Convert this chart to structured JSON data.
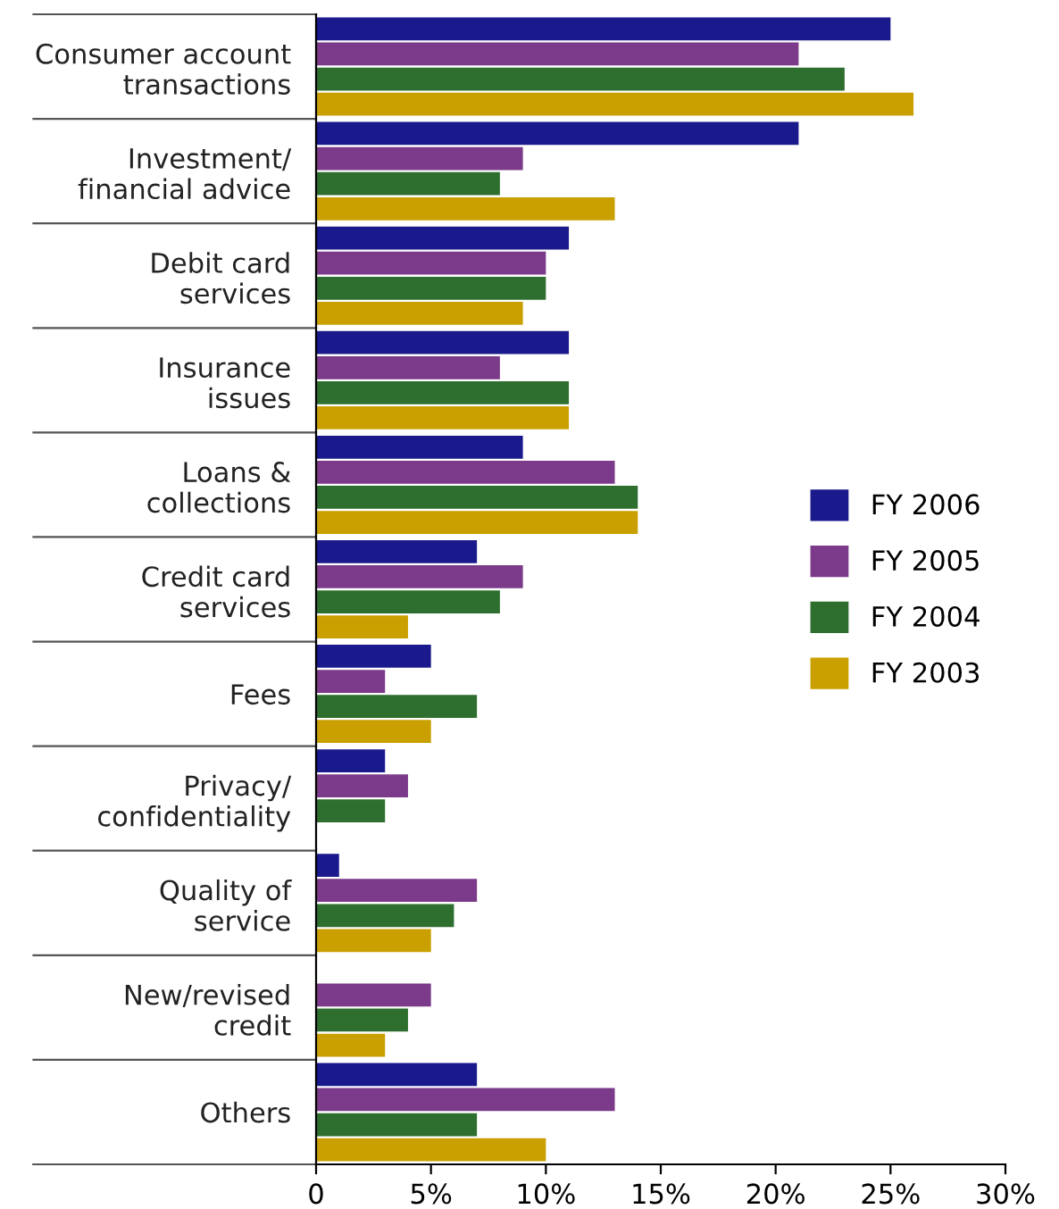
{
  "chart_data": {
    "type": "bar",
    "orientation": "horizontal",
    "categories": [
      "Consumer account\ntransactions",
      "Investment/\nfinancial advice",
      "Debit card\nservices",
      "Insurance\nissues",
      "Loans &\ncollections",
      "Credit card\nservices",
      "Fees",
      "Privacy/\nconfidentiality",
      "Quality of\nservice",
      "New/revised\ncredit",
      "Others"
    ],
    "series": [
      {
        "name": "FY 2006",
        "color": "#1a1a8c",
        "values": [
          25,
          21,
          11,
          11,
          9,
          7,
          5,
          3,
          1,
          null,
          7
        ]
      },
      {
        "name": "FY 2005",
        "color": "#7b3a8a",
        "values": [
          21,
          9,
          10,
          8,
          13,
          9,
          3,
          4,
          7,
          5,
          13
        ]
      },
      {
        "name": "FY 2004",
        "color": "#2e6e2e",
        "values": [
          23,
          8,
          10,
          11,
          14,
          8,
          7,
          3,
          6,
          4,
          7
        ]
      },
      {
        "name": "FY 2003",
        "color": "#c9a000",
        "values": [
          26,
          13,
          9,
          11,
          14,
          4,
          5,
          null,
          5,
          3,
          10
        ]
      }
    ],
    "xlim": [
      0,
      30
    ],
    "xticks": [
      0,
      {
        "value": 5,
        "label": "5%"
      },
      {
        "value": 10,
        "label": "10%"
      },
      {
        "value": 15,
        "label": "15%"
      },
      {
        "value": 20,
        "label": "20%"
      },
      {
        "value": 25,
        "label": "25%"
      },
      {
        "value": 30,
        "label": "30%"
      }
    ],
    "grid": false,
    "legend": "right"
  }
}
